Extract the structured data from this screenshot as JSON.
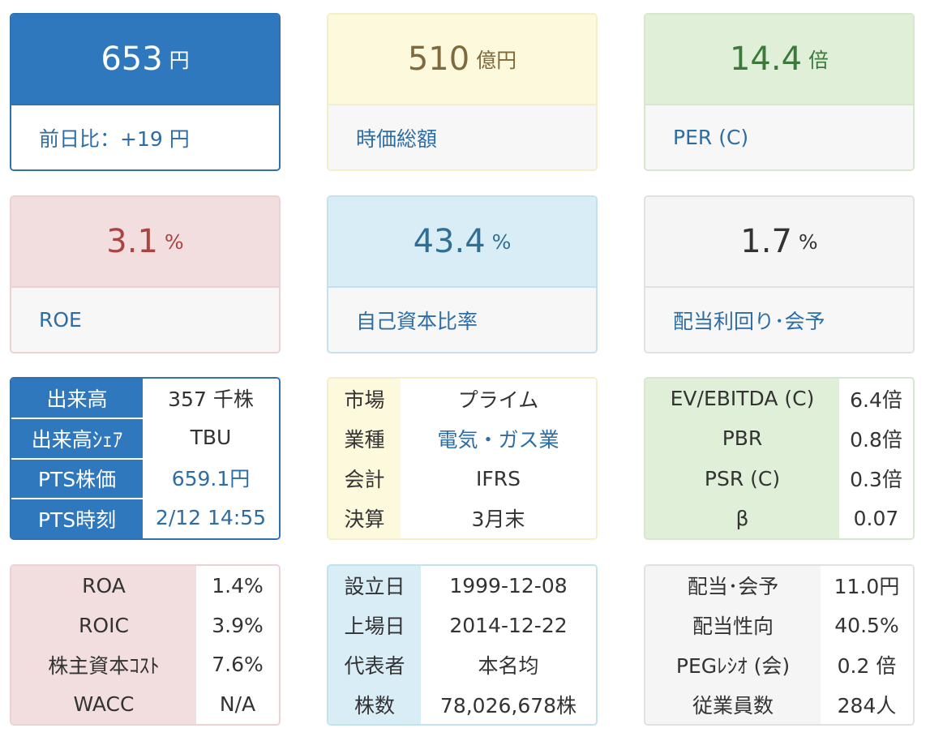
{
  "cards": {
    "price": {
      "value": "653",
      "unit": "円",
      "label": "前日比：+19 円"
    },
    "market_cap": {
      "value": "510",
      "unit": "億円",
      "label": "時価総額"
    },
    "per": {
      "value": "14.4",
      "unit": "倍",
      "label": "PER (C)"
    },
    "roe": {
      "value": "3.1",
      "unit": "%",
      "label": "ROE"
    },
    "equity_ratio": {
      "value": "43.4",
      "unit": "%",
      "label": "自己資本比率"
    },
    "dividend_yield": {
      "value": "1.7",
      "unit": "%",
      "label": "配当利回り･会予"
    }
  },
  "trading_table": {
    "rows": [
      {
        "label": "出来高",
        "value": "357 千株"
      },
      {
        "label": "出来高ｼｪｱ",
        "value": "TBU"
      },
      {
        "label": "PTS株価",
        "value": "659.1円"
      },
      {
        "label": "PTS時刻",
        "value": "2/12 14:55"
      }
    ]
  },
  "company_table": {
    "rows": [
      {
        "label": "市場",
        "value": "プライム"
      },
      {
        "label": "業種",
        "value": "電気・ガス業"
      },
      {
        "label": "会計",
        "value": "IFRS"
      },
      {
        "label": "決算",
        "value": "3月末"
      }
    ]
  },
  "valuation_table": {
    "rows": [
      {
        "label": "EV/EBITDA (C)",
        "value": "6.4倍"
      },
      {
        "label": "PBR",
        "value": "0.8倍"
      },
      {
        "label": "PSR (C)",
        "value": "0.3倍"
      },
      {
        "label": "β",
        "value": "0.07"
      }
    ]
  },
  "profitability_table": {
    "rows": [
      {
        "label": "ROA",
        "value": "1.4%"
      },
      {
        "label": "ROIC",
        "value": "3.9%"
      },
      {
        "label": "株主資本ｺｽﾄ",
        "value": "7.6%"
      },
      {
        "label": "WACC",
        "value": "N/A"
      }
    ]
  },
  "profile_table": {
    "rows": [
      {
        "label": "設立日",
        "value": "1999-12-08"
      },
      {
        "label": "上場日",
        "value": "2014-12-22"
      },
      {
        "label": "代表者",
        "value": "本名均"
      },
      {
        "label": "株数",
        "value": "78,026,678株"
      }
    ]
  },
  "dividend_table": {
    "rows": [
      {
        "label": "配当･会予",
        "value": "11.0円"
      },
      {
        "label": "配当性向",
        "value": "40.5%"
      },
      {
        "label": "PEGﾚｼｵ (会)",
        "value": "0.2 倍"
      },
      {
        "label": "従業員数",
        "value": "284人"
      }
    ]
  },
  "colors": {
    "accent_blue": "#2f78bd",
    "link_blue": "#2d6da3",
    "yellow_bg": "#fdf9dd",
    "green_bg": "#e0f0d8",
    "red_bg": "#f2dede",
    "light_blue_bg": "#d9edf7",
    "gray_bg": "#f5f5f5"
  }
}
